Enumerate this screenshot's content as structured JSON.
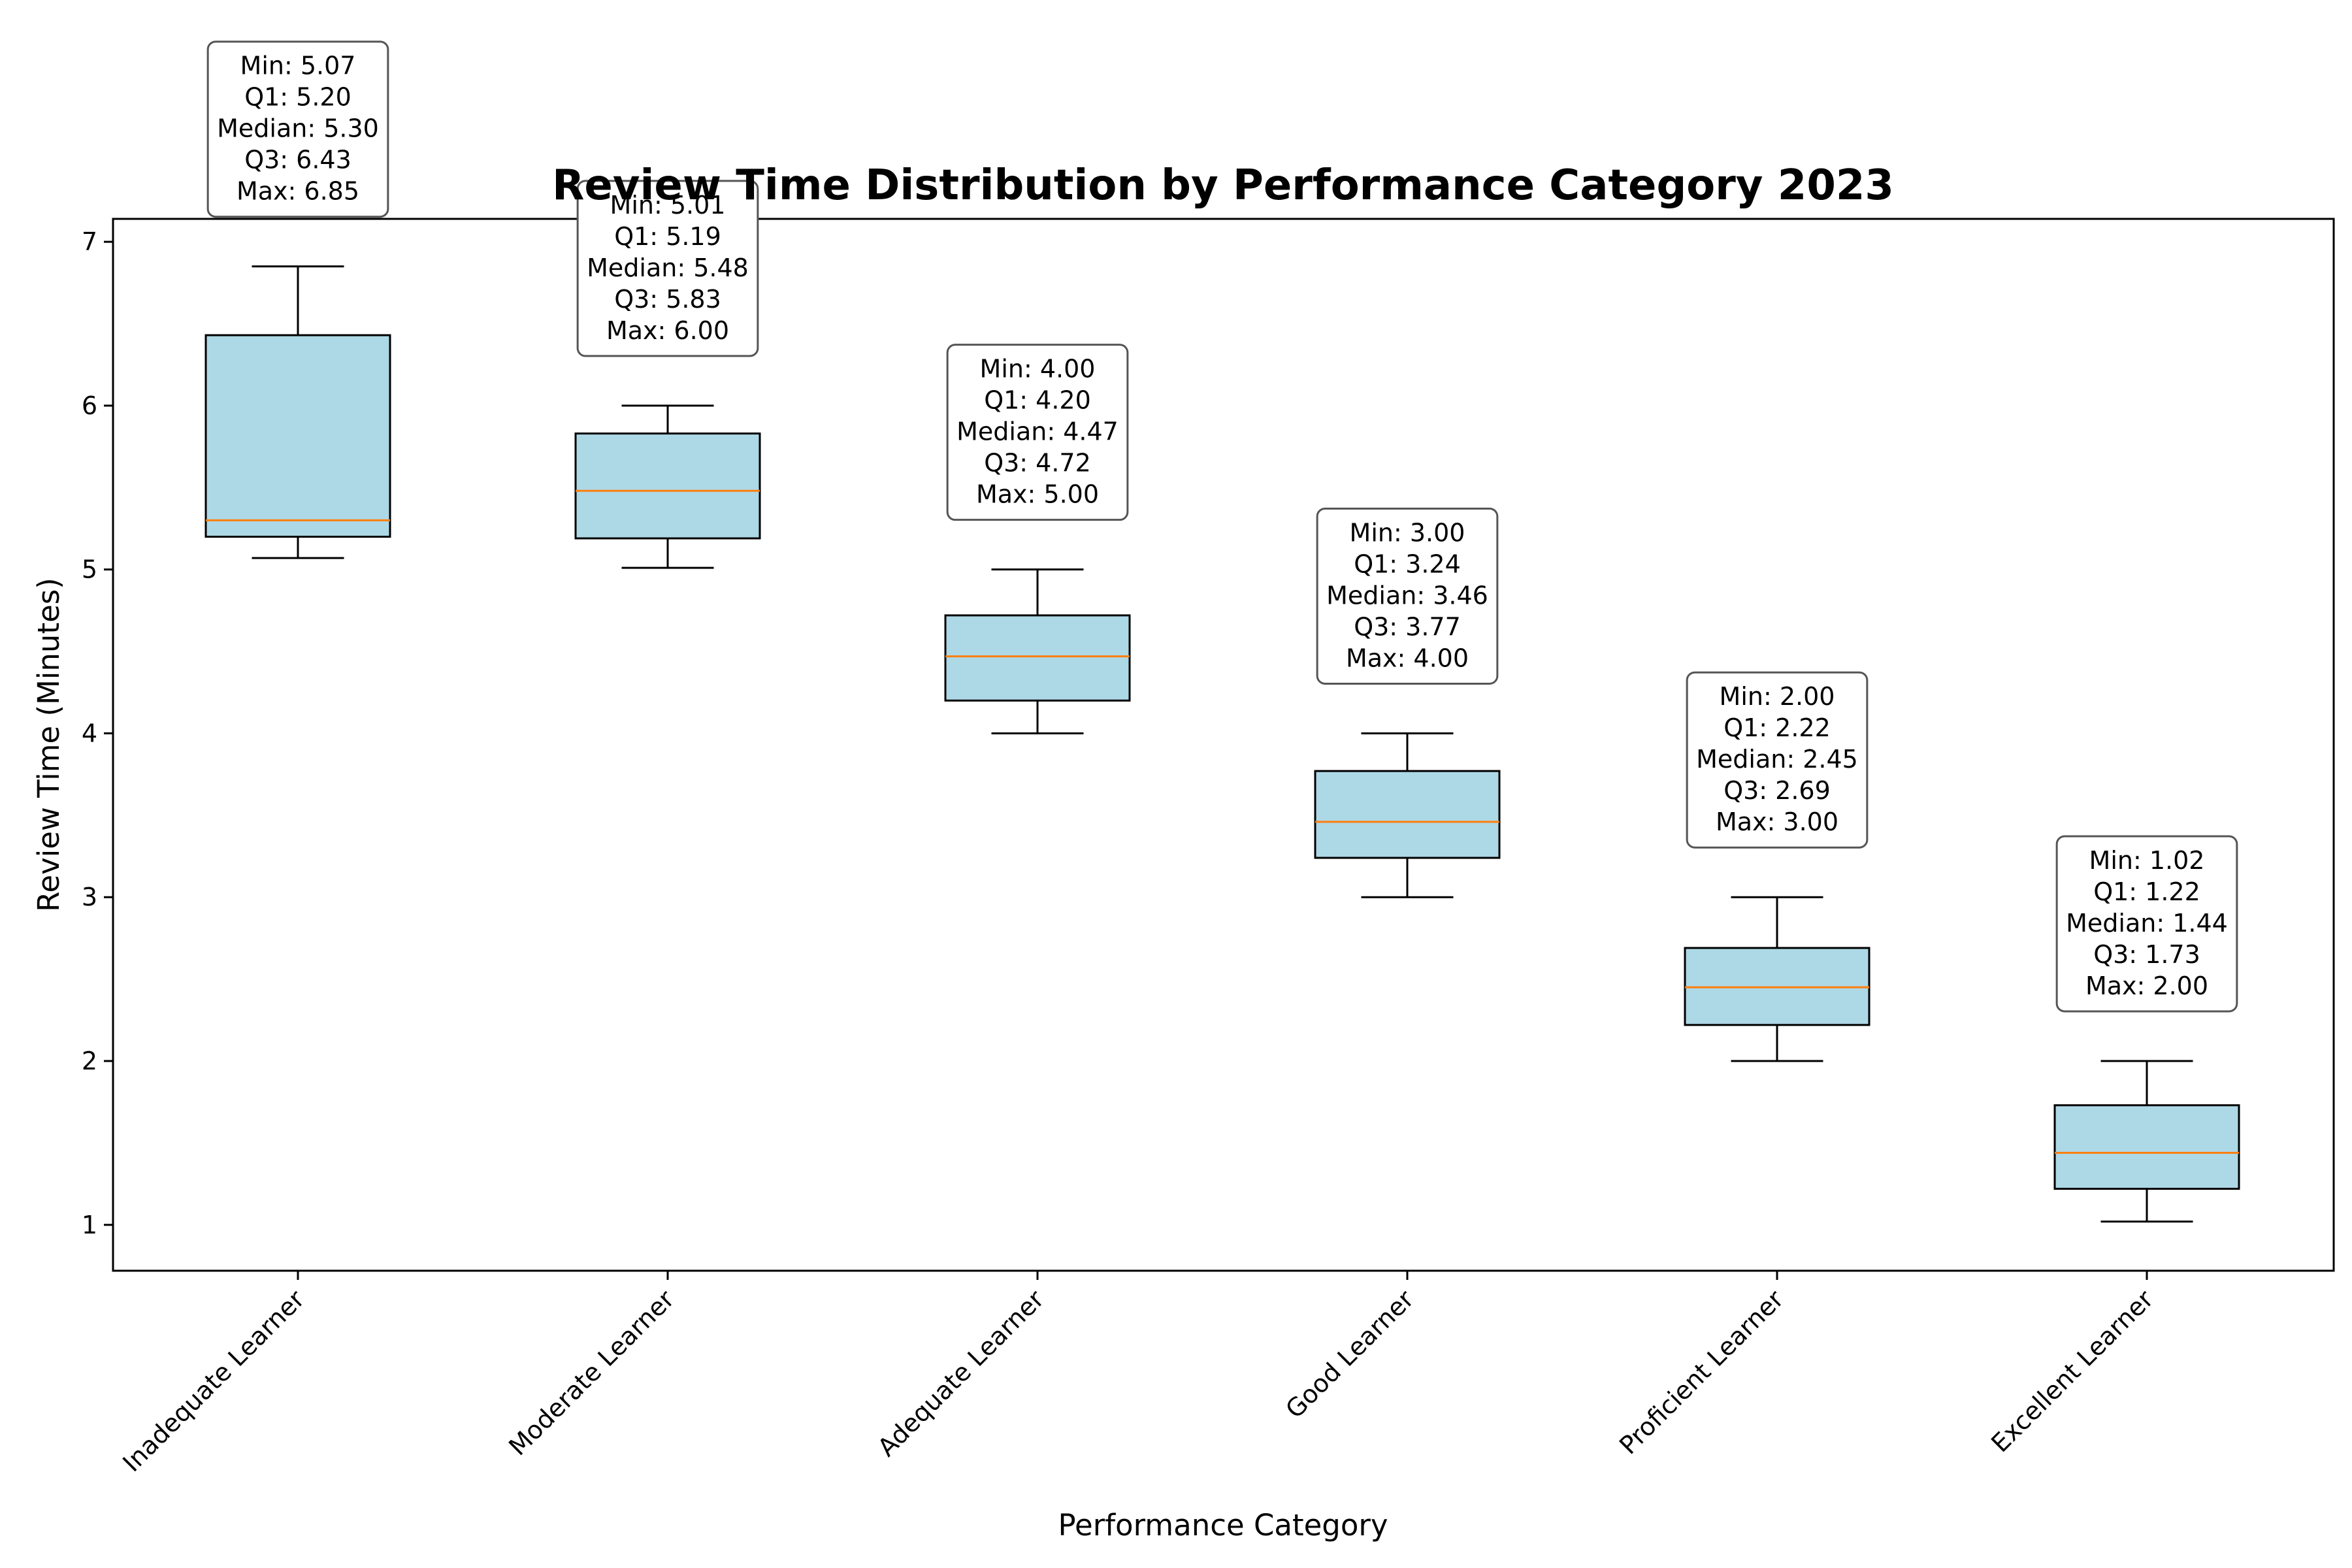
{
  "chart_data": {
    "type": "boxplot",
    "title": "Review Time Distribution by Performance Category 2023",
    "xlabel": "Performance Category",
    "ylabel": "Review Time (Minutes)",
    "ylim": [
      0.72,
      7.14
    ],
    "yticks": [
      1,
      2,
      3,
      4,
      5,
      6,
      7
    ],
    "grid": false,
    "legend": "none",
    "colors": {
      "box_fill": "#add8e6",
      "median": "#ff7f0e",
      "edge": "#000000",
      "annotation_border": "#555555"
    },
    "categories": [
      "Inadequate Learner",
      "Moderate Learner",
      "Adequate Learner",
      "Good Learner",
      "Proficient Learner",
      "Excellent Learner"
    ],
    "boxes": [
      {
        "category": "Inadequate Learner",
        "min": 5.07,
        "q1": 5.2,
        "median": 5.3,
        "q3": 6.43,
        "max": 6.85,
        "annotation": [
          "Min: 5.07",
          "Q1: 5.20",
          "Median: 5.30",
          "Q3: 6.43",
          "Max: 6.85"
        ]
      },
      {
        "category": "Moderate Learner",
        "min": 5.01,
        "q1": 5.19,
        "median": 5.48,
        "q3": 5.83,
        "max": 6.0,
        "annotation": [
          "Min: 5.01",
          "Q1: 5.19",
          "Median: 5.48",
          "Q3: 5.83",
          "Max: 6.00"
        ]
      },
      {
        "category": "Adequate Learner",
        "min": 4.0,
        "q1": 4.2,
        "median": 4.47,
        "q3": 4.72,
        "max": 5.0,
        "annotation": [
          "Min: 4.00",
          "Q1: 4.20",
          "Median: 4.47",
          "Q3: 4.72",
          "Max: 5.00"
        ]
      },
      {
        "category": "Good Learner",
        "min": 3.0,
        "q1": 3.24,
        "median": 3.46,
        "q3": 3.77,
        "max": 4.0,
        "annotation": [
          "Min: 3.00",
          "Q1: 3.24",
          "Median: 3.46",
          "Q3: 3.77",
          "Max: 4.00"
        ]
      },
      {
        "category": "Proficient Learner",
        "min": 2.0,
        "q1": 2.22,
        "median": 2.45,
        "q3": 2.69,
        "max": 3.0,
        "annotation": [
          "Min: 2.00",
          "Q1: 2.22",
          "Median: 2.45",
          "Q3: 2.69",
          "Max: 3.00"
        ]
      },
      {
        "category": "Excellent Learner",
        "min": 1.02,
        "q1": 1.22,
        "median": 1.44,
        "q3": 1.73,
        "max": 2.0,
        "annotation": [
          "Min: 1.02",
          "Q1: 1.22",
          "Median: 1.44",
          "Q3: 1.73",
          "Max: 2.00"
        ]
      }
    ]
  }
}
